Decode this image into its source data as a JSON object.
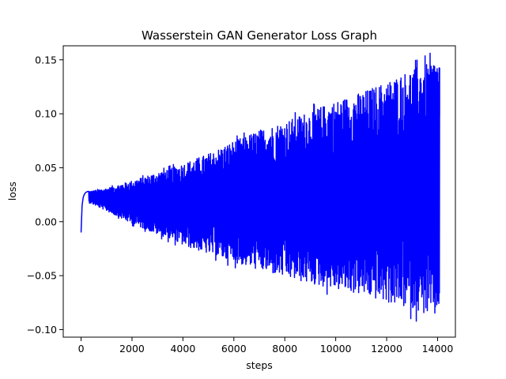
{
  "chart_data": {
    "type": "line",
    "title": "Wasserstein GAN Generator Loss Graph",
    "xlabel": "steps",
    "ylabel": "loss",
    "xlim": [
      -700,
      14700
    ],
    "ylim": [
      -0.107,
      0.163
    ],
    "x_ticks": [
      0,
      2000,
      4000,
      6000,
      8000,
      10000,
      12000,
      14000
    ],
    "x_tick_labels": [
      "0",
      "2000",
      "4000",
      "6000",
      "8000",
      "10000",
      "12000",
      "14000"
    ],
    "y_ticks": [
      -0.1,
      -0.05,
      0.0,
      0.05,
      0.1,
      0.15
    ],
    "y_tick_labels": [
      "−0.10",
      "−0.05",
      "0.00",
      "0.05",
      "0.10",
      "0.15"
    ],
    "grid": false,
    "legend": "none",
    "series": [
      {
        "color": "#0000ff",
        "start": {
          "x": [
            0,
            40,
            80,
            120,
            180,
            250,
            320
          ],
          "y": [
            -0.01,
            0.015,
            0.022,
            0.025,
            0.027,
            0.028,
            0.028
          ]
        },
        "envelope": {
          "x": [
            300,
            1000,
            2000,
            3000,
            4000,
            5000,
            6000,
            7000,
            8000,
            9000,
            10000,
            11000,
            12000,
            13000,
            14000,
            14080
          ],
          "upper": [
            0.028,
            0.031,
            0.038,
            0.046,
            0.054,
            0.063,
            0.075,
            0.085,
            0.093,
            0.103,
            0.112,
            0.12,
            0.13,
            0.142,
            0.152,
            0.151
          ],
          "lower": [
            0.018,
            0.01,
            -0.002,
            -0.012,
            -0.022,
            -0.03,
            -0.038,
            -0.045,
            -0.052,
            -0.058,
            -0.063,
            -0.068,
            -0.075,
            -0.082,
            -0.09,
            -0.073
          ]
        },
        "end_x": 14080,
        "end_y": 0.098
      }
    ]
  }
}
